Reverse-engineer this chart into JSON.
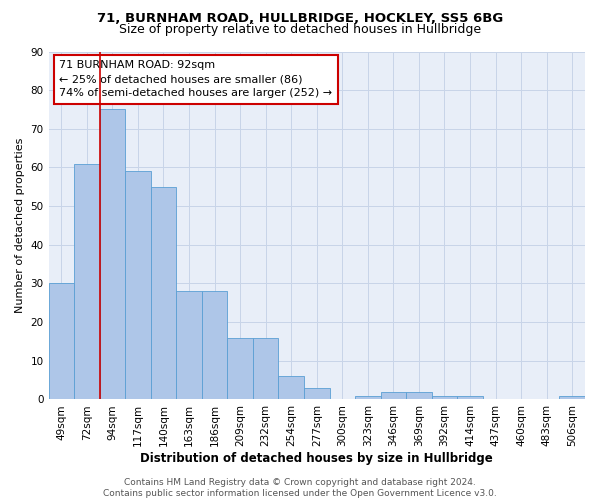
{
  "title1": "71, BURNHAM ROAD, HULLBRIDGE, HOCKLEY, SS5 6BG",
  "title2": "Size of property relative to detached houses in Hullbridge",
  "xlabel": "Distribution of detached houses by size in Hullbridge",
  "ylabel": "Number of detached properties",
  "bar_values": [
    30,
    61,
    75,
    59,
    55,
    28,
    28,
    16,
    16,
    6,
    3,
    0,
    1,
    2,
    2,
    1,
    1,
    0,
    0,
    0,
    1
  ],
  "bar_labels": [
    "49sqm",
    "72sqm",
    "94sqm",
    "117sqm",
    "140sqm",
    "163sqm",
    "186sqm",
    "209sqm",
    "232sqm",
    "254sqm",
    "277sqm",
    "300sqm",
    "323sqm",
    "346sqm",
    "369sqm",
    "392sqm",
    "414sqm",
    "437sqm",
    "460sqm",
    "483sqm",
    "506sqm"
  ],
  "bar_color": "#aec6e8",
  "bar_edge_color": "#5a9fd4",
  "vline_color": "#cc0000",
  "vline_x": 1.5,
  "annotation_line1": "71 BURNHAM ROAD: 92sqm",
  "annotation_line2": "← 25% of detached houses are smaller (86)",
  "annotation_line3": "74% of semi-detached houses are larger (252) →",
  "annotation_box_color": "#cc0000",
  "ylim": [
    0,
    90
  ],
  "yticks": [
    0,
    10,
    20,
    30,
    40,
    50,
    60,
    70,
    80,
    90
  ],
  "grid_color": "#c8d4e8",
  "background_color": "#e8eef8",
  "footer_text": "Contains HM Land Registry data © Crown copyright and database right 2024.\nContains public sector information licensed under the Open Government Licence v3.0.",
  "title1_fontsize": 9.5,
  "title2_fontsize": 9,
  "xlabel_fontsize": 8.5,
  "ylabel_fontsize": 8,
  "tick_fontsize": 7.5,
  "annotation_fontsize": 8,
  "footer_fontsize": 6.5
}
